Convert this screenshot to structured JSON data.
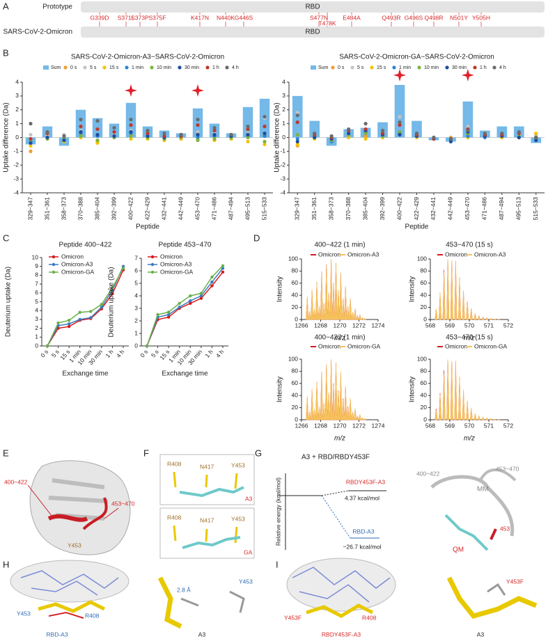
{
  "panel_labels": [
    "A",
    "B",
    "C",
    "D",
    "E",
    "F",
    "G",
    "H",
    "I"
  ],
  "panel_a": {
    "tracks": [
      {
        "name": "Prototype",
        "domain": "RBD"
      },
      {
        "name": "SARS-CoV-2-Omicron",
        "domain": "RBD"
      }
    ],
    "mutations": [
      "G339D",
      "S371L",
      "S373P",
      "S375F",
      "K417N",
      "N440K",
      "G446S",
      "S477N",
      "T478K",
      "E484A",
      "Q493R",
      "G496S",
      "Q498R",
      "N501Y",
      "Y505H"
    ]
  },
  "chart_data": [
    {
      "type": "bar",
      "title": "SARS-CoV-2-Omicron-A3−SARS-CoV-2-Omicron",
      "x_label": "Peptide",
      "y_label": "Uptake difference (Da)",
      "categories": [
        "329−347",
        "351−361",
        "358−373",
        "370−388",
        "385−404",
        "392−399",
        "400−422",
        "422−429",
        "432−441",
        "442−449",
        "453−470",
        "471−486",
        "487−494",
        "495−513",
        "515−533"
      ],
      "ylim": [
        -4,
        4
      ],
      "yticks": [
        -4,
        -3,
        -2,
        -1,
        0,
        1,
        2,
        3,
        4
      ],
      "series": [
        {
          "name": "Sum",
          "kind": "bar",
          "color": "#74b9e8",
          "values": [
            -0.5,
            0.8,
            -0.6,
            2.0,
            1.4,
            1.0,
            2.5,
            0.8,
            0.5,
            0.3,
            2.1,
            1.0,
            0.3,
            2.2,
            2.8
          ]
        },
        {
          "name": "0 s",
          "kind": "point",
          "color": "#f39c34",
          "values": [
            -1.0,
            0.0,
            -0.2,
            0.2,
            -0.3,
            0.1,
            0.2,
            0.1,
            0.0,
            0.0,
            0.3,
            0.0,
            0.0,
            0.1,
            0.2
          ]
        },
        {
          "name": "5 s",
          "kind": "point",
          "color": "#c4c4c4",
          "values": [
            0.2,
            0.1,
            0.2,
            0.5,
            0.6,
            0.2,
            0.5,
            0.1,
            0.1,
            0.0,
            0.4,
            0.3,
            0.1,
            0.3,
            1.4
          ]
        },
        {
          "name": "15 s",
          "kind": "point",
          "color": "#f2c300",
          "values": [
            -0.6,
            -0.1,
            -0.3,
            0.0,
            -0.4,
            0.0,
            -0.1,
            -0.1,
            -0.2,
            -0.1,
            -0.1,
            -0.2,
            -0.1,
            -0.3,
            -0.5
          ]
        },
        {
          "name": "1 min",
          "kind": "point",
          "color": "#2e86d1",
          "values": [
            -0.3,
            0.0,
            -0.1,
            0.3,
            0.1,
            0.1,
            0.3,
            0.1,
            0.0,
            0.2,
            0.0,
            0.1,
            0.0,
            0.1,
            0.1
          ]
        },
        {
          "name": "10 min",
          "kind": "point",
          "color": "#7cb342",
          "values": [
            -0.2,
            -0.1,
            -0.1,
            0.1,
            -0.2,
            0.0,
            0.1,
            0.0,
            -0.1,
            0.0,
            -0.2,
            -0.1,
            0.0,
            0.0,
            -0.3
          ]
        },
        {
          "name": "30 min",
          "kind": "point",
          "color": "#1f4e9c",
          "values": [
            -0.4,
            0.0,
            -0.2,
            0.4,
            0.2,
            0.1,
            0.4,
            0.1,
            0.0,
            0.2,
            0.2,
            0.2,
            0.1,
            0.2,
            0.3
          ]
        },
        {
          "name": "1 h",
          "kind": "point",
          "color": "#c0392b",
          "values": [
            -0.1,
            0.3,
            0.1,
            0.8,
            0.6,
            0.4,
            0.9,
            0.3,
            0.1,
            0.1,
            0.9,
            0.5,
            0.2,
            0.6,
            0.8
          ]
        },
        {
          "name": "4 h",
          "kind": "point",
          "color": "#6b6b6b",
          "values": [
            1.0,
            0.4,
            0.1,
            1.3,
            1.2,
            0.7,
            1.3,
            0.5,
            0.3,
            0.2,
            1.3,
            0.7,
            0.2,
            0.8,
            1.5
          ]
        }
      ]
    },
    {
      "type": "bar",
      "title": "SARS-CoV-2-Omicron-GA−SARS-CoV-2-Omicron",
      "x_label": "Peptide",
      "y_label": "Uptake difference (Da)",
      "categories": [
        "329−347",
        "351−361",
        "358−373",
        "370−388",
        "385−404",
        "392−399",
        "400−422",
        "422−429",
        "432−441",
        "442−449",
        "453−470",
        "471−486",
        "487−494",
        "495−513",
        "515−533"
      ],
      "ylim": [
        -4,
        4
      ],
      "yticks": [
        -4,
        -3,
        -2,
        -1,
        0,
        1,
        2,
        3,
        4
      ],
      "series": [
        {
          "name": "Sum",
          "kind": "bar",
          "color": "#74b9e8",
          "values": [
            3.0,
            1.2,
            -0.6,
            0.6,
            0.7,
            1.1,
            3.8,
            1.2,
            -0.2,
            -0.3,
            2.6,
            0.5,
            0.8,
            0.8,
            -0.4
          ]
        },
        {
          "name": "0 s",
          "kind": "point",
          "color": "#f39c34",
          "values": [
            -0.6,
            0.1,
            -0.1,
            0.1,
            0.1,
            0.1,
            0.2,
            0.1,
            0.0,
            0.0,
            0.2,
            0.1,
            0.0,
            0.0,
            0.2
          ]
        },
        {
          "name": "5 s",
          "kind": "point",
          "color": "#c4c4c4",
          "values": [
            1.8,
            0.2,
            0.1,
            0.4,
            0.5,
            0.3,
            1.5,
            0.2,
            0.0,
            -0.1,
            0.8,
            0.3,
            0.2,
            0.2,
            0.1
          ]
        },
        {
          "name": "15 s",
          "kind": "point",
          "color": "#f2c300",
          "values": [
            -0.5,
            -0.1,
            -0.2,
            0.0,
            -0.1,
            0.0,
            0.2,
            0.0,
            -0.1,
            -0.2,
            0.0,
            0.3,
            0.0,
            0.0,
            0.3
          ]
        },
        {
          "name": "1 min",
          "kind": "point",
          "color": "#2e86d1",
          "values": [
            -0.1,
            0.0,
            -0.3,
            0.2,
            0.4,
            0.1,
            0.3,
            0.1,
            -0.1,
            -0.2,
            0.1,
            0.0,
            0.1,
            0.0,
            -0.2
          ]
        },
        {
          "name": "10 min",
          "kind": "point",
          "color": "#7cb342",
          "values": [
            0.2,
            0.1,
            -0.2,
            0.2,
            0.3,
            0.1,
            0.4,
            0.1,
            0.0,
            -0.1,
            0.3,
            0.1,
            0.1,
            0.1,
            -0.1
          ]
        },
        {
          "name": "30 min",
          "kind": "point",
          "color": "#1f4e9c",
          "values": [
            -0.3,
            0.0,
            -0.1,
            0.3,
            0.5,
            0.2,
            0.2,
            0.1,
            -0.1,
            -0.3,
            0.4,
            0.1,
            0.1,
            0.0,
            -0.2
          ]
        },
        {
          "name": "1 h",
          "kind": "point",
          "color": "#c0392b",
          "values": [
            1.1,
            0.2,
            0.0,
            0.5,
            0.6,
            0.3,
            0.9,
            0.2,
            -0.1,
            -0.1,
            0.6,
            0.2,
            0.2,
            0.3,
            0.0
          ]
        },
        {
          "name": "4 h",
          "kind": "point",
          "color": "#6b6b6b",
          "values": [
            1.6,
            0.3,
            0.1,
            0.6,
            1.0,
            0.5,
            1.1,
            0.3,
            0.0,
            -0.1,
            0.5,
            0.3,
            0.3,
            0.4,
            0.0
          ]
        }
      ]
    },
    {
      "type": "line",
      "title": "Peptide 400−422",
      "x_label": "Exchange time",
      "y_label": "Deuterium uptake (Da)",
      "categories": [
        "0 s",
        "5 s",
        "15 s",
        "1 min",
        "10 min",
        "30 min",
        "1 h",
        "4 h"
      ],
      "ylim": [
        0,
        10
      ],
      "yticks": [
        0,
        1,
        2,
        3,
        4,
        5,
        6,
        7,
        8,
        9,
        10
      ],
      "legend": "upper left",
      "series": [
        {
          "name": "Omicron",
          "color": "#d7191c",
          "values": [
            0,
            2.0,
            2.2,
            2.9,
            3.1,
            4.2,
            5.9,
            8.6
          ]
        },
        {
          "name": "Omicron-A3",
          "color": "#3b7bbf",
          "values": [
            0,
            2.3,
            2.5,
            3.0,
            3.2,
            4.4,
            6.3,
            9.0
          ]
        },
        {
          "name": "Omicron-GA",
          "color": "#6ab04c",
          "values": [
            0,
            2.6,
            2.9,
            3.8,
            3.9,
            4.7,
            6.6,
            8.8
          ]
        }
      ]
    },
    {
      "type": "line",
      "title": "Peptide 453−470",
      "x_label": "Exchange time",
      "y_label": "Deuterium uptake (Da)",
      "categories": [
        "0 s",
        "5 s",
        "15 s",
        "1 min",
        "10 min",
        "30 min",
        "1 h",
        "4 h"
      ],
      "ylim": [
        0,
        7
      ],
      "yticks": [
        0,
        1,
        2,
        3,
        4,
        5,
        6,
        7
      ],
      "legend": "upper left",
      "series": [
        {
          "name": "Omicron",
          "color": "#d7191c",
          "values": [
            0,
            2.1,
            2.3,
            3.0,
            3.4,
            3.8,
            4.8,
            5.9
          ]
        },
        {
          "name": "Omicron-A3",
          "color": "#3b7bbf",
          "values": [
            0,
            2.3,
            2.5,
            3.1,
            3.6,
            4.0,
            5.1,
            6.2
          ]
        },
        {
          "name": "Omicron-GA",
          "color": "#6ab04c",
          "values": [
            0,
            2.5,
            2.7,
            3.4,
            4.0,
            4.2,
            5.5,
            6.4
          ]
        }
      ]
    },
    {
      "type": "spectrum",
      "title": "400−422 (1 min)",
      "x_label": "m/z",
      "y_label": "Intensity",
      "x": [
        1266.6,
        1266.85,
        1267.1,
        1267.35,
        1267.6,
        1267.85,
        1268.1,
        1268.35,
        1268.6,
        1268.85,
        1269.1,
        1269.35,
        1269.6,
        1269.85,
        1270.1,
        1270.35,
        1270.6,
        1270.85,
        1271.1,
        1271.35,
        1271.6,
        1271.85,
        1272.1,
        1272.35,
        1272.6
      ],
      "xlim": [
        1266,
        1274
      ],
      "xticks": [
        1266,
        1268,
        1270,
        1272,
        1274
      ],
      "ylim": [
        0,
        100
      ],
      "yticks": [
        0,
        20,
        40,
        60,
        80,
        100
      ],
      "series": [
        {
          "name": "Omicron",
          "color": "#d7191c",
          "values": [
            36,
            13,
            49,
            17,
            62,
            21,
            79,
            27,
            91,
            44,
            99,
            60,
            93,
            48,
            77,
            35,
            54,
            22,
            34,
            12,
            18,
            6,
            8,
            3,
            2
          ]
        },
        {
          "name": "Omicron-A3",
          "color": "#f6c25c",
          "values": [
            38,
            14,
            50,
            18,
            62,
            22,
            78,
            28,
            90,
            45,
            100,
            60,
            94,
            48,
            78,
            35,
            55,
            22,
            35,
            12,
            18,
            6,
            8,
            3,
            2
          ]
        }
      ]
    },
    {
      "type": "spectrum",
      "title": "453−470 (15 s)",
      "x_label": "m/z",
      "y_label": "Intensity",
      "x": [
        568.3,
        568.5,
        568.7,
        568.9,
        569.1,
        569.3,
        569.5,
        569.7,
        569.9,
        570.1,
        570.3,
        570.5,
        570.7,
        570.9,
        571.1,
        571.3,
        571.5
      ],
      "xlim": [
        568,
        572
      ],
      "xticks": [
        568,
        569,
        570,
        571,
        572
      ],
      "ylim": [
        0,
        100
      ],
      "yticks": [
        0,
        20,
        40,
        60,
        80,
        100
      ],
      "series": [
        {
          "name": "Omicron",
          "color": "#d7191c",
          "values": [
            17,
            44,
            82,
            99,
            97,
            96,
            69,
            47,
            30,
            18,
            10,
            6,
            4,
            3,
            2,
            1,
            1
          ]
        },
        {
          "name": "Omicron-A3",
          "color": "#f6c25c",
          "values": [
            18,
            45,
            78,
            100,
            98,
            97,
            70,
            48,
            30,
            18,
            10,
            6,
            4,
            3,
            2,
            1,
            1
          ]
        }
      ]
    },
    {
      "type": "spectrum",
      "title": "400−422 (1 min)",
      "x_label": "m/z",
      "y_label": "Intensity",
      "x": [
        1266.6,
        1266.85,
        1267.1,
        1267.35,
        1267.6,
        1267.85,
        1268.1,
        1268.35,
        1268.6,
        1268.85,
        1269.1,
        1269.35,
        1269.6,
        1269.85,
        1270.1,
        1270.35,
        1270.6,
        1270.85,
        1271.1,
        1271.35,
        1271.6,
        1271.85,
        1272.1,
        1272.35,
        1272.6
      ],
      "xlim": [
        1266,
        1274
      ],
      "xticks": [
        1266,
        1268,
        1270,
        1272,
        1274
      ],
      "ylim": [
        0,
        100
      ],
      "yticks": [
        0,
        20,
        40,
        60,
        80,
        100
      ],
      "series": [
        {
          "name": "Omicron",
          "color": "#d7191c",
          "values": [
            36,
            13,
            49,
            17,
            62,
            21,
            79,
            27,
            91,
            44,
            99,
            60,
            93,
            48,
            77,
            35,
            54,
            22,
            34,
            12,
            18,
            6,
            8,
            3,
            2
          ]
        },
        {
          "name": "Omicron-GA",
          "color": "#f6c25c",
          "values": [
            40,
            13,
            52,
            18,
            63,
            22,
            80,
            28,
            92,
            45,
            100,
            58,
            95,
            46,
            80,
            33,
            56,
            20,
            36,
            11,
            19,
            6,
            9,
            3,
            2
          ]
        }
      ]
    },
    {
      "type": "spectrum",
      "title": "453−470 (15 s)",
      "x_label": "m/z",
      "y_label": "Intensity",
      "x": [
        568.3,
        568.5,
        568.7,
        568.9,
        569.1,
        569.3,
        569.5,
        569.7,
        569.9,
        570.1,
        570.3,
        570.5,
        570.7,
        570.9,
        571.1,
        571.3,
        571.5
      ],
      "xlim": [
        568,
        572
      ],
      "xticks": [
        568,
        569,
        570,
        571,
        572
      ],
      "ylim": [
        0,
        100
      ],
      "yticks": [
        0,
        20,
        40,
        60,
        80,
        100
      ],
      "series": [
        {
          "name": "Omicron",
          "color": "#d7191c",
          "values": [
            18,
            44,
            82,
            99,
            97,
            96,
            69,
            47,
            30,
            18,
            10,
            6,
            4,
            3,
            2,
            1,
            1
          ]
        },
        {
          "name": "Omicron-GA",
          "color": "#f6c25c",
          "values": [
            16,
            42,
            76,
            100,
            97,
            98,
            72,
            50,
            32,
            20,
            11,
            7,
            5,
            3,
            2,
            1,
            1
          ]
        }
      ]
    }
  ],
  "panel_e": {
    "labels": [
      "400−422",
      "453−470",
      "Y453"
    ]
  },
  "panel_f": {
    "residues": [
      "R408",
      "N417",
      "Y453"
    ],
    "ligands": [
      "A3",
      "GA"
    ]
  },
  "panel_g": {
    "title": "A3 + RBD/RBDY453F",
    "y_label": "Relative energy (kcal/mol)",
    "states": [
      {
        "label": "RBDY453F-A3",
        "energy": "4.37 kcal/mol"
      },
      {
        "label": "RBD-A3",
        "energy": "−26.7 kcal/mol"
      }
    ],
    "structure_labels": [
      "400−422",
      "453−470",
      "MM",
      "QM",
      "453"
    ]
  },
  "panel_h": {
    "labels": [
      "Y453",
      "R408",
      "RBD-A3",
      "A3",
      "2.8 Å",
      "Y453"
    ]
  },
  "panel_i": {
    "labels": [
      "Y453F",
      "R408",
      "RBDY453F-A3",
      "A3",
      "Y453F"
    ]
  }
}
